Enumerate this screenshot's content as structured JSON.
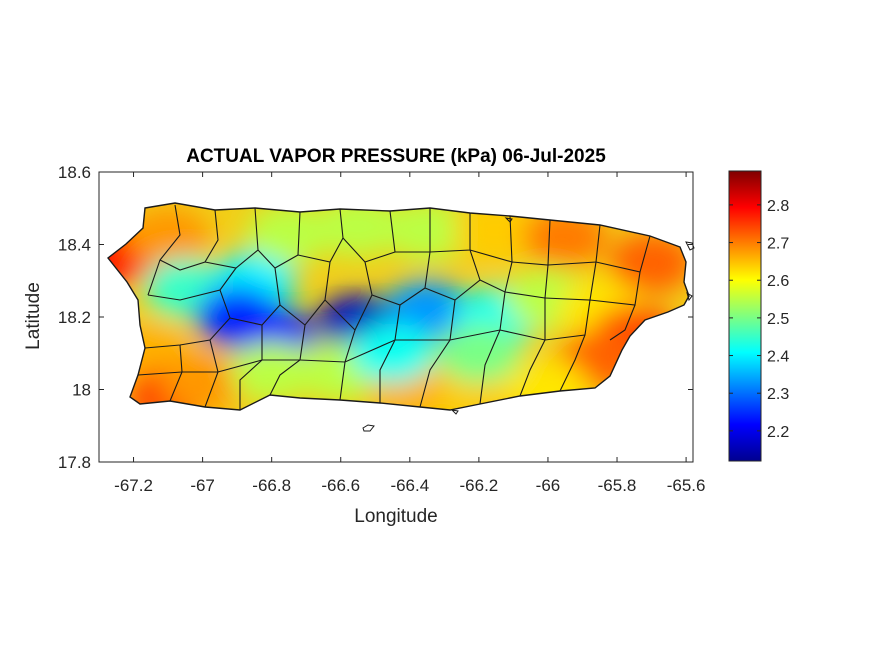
{
  "chart_data": {
    "type": "heatmap",
    "title": "ACTUAL VAPOR PRESSURE (kPa) 06-Jul-2025",
    "xlabel": "Longitude",
    "ylabel": "Latitude",
    "xlim": [
      -67.3,
      -65.58
    ],
    "ylim": [
      17.8,
      18.6
    ],
    "x_ticks": [
      "-67.2",
      "-67",
      "-66.8",
      "-66.6",
      "-66.4",
      "-66.2",
      "-66",
      "-65.8",
      "-65.6"
    ],
    "x_tick_values": [
      -67.2,
      -67.0,
      -66.8,
      -66.6,
      -66.4,
      -66.2,
      -66.0,
      -65.8,
      -65.6
    ],
    "y_ticks": [
      "17.8",
      "18",
      "18.2",
      "18.4",
      "18.6"
    ],
    "y_tick_values": [
      17.8,
      18.0,
      18.2,
      18.4,
      18.6
    ],
    "colorbar": {
      "colormap": "jet",
      "range": [
        2.12,
        2.89
      ],
      "ticks": [
        "2.2",
        "2.3",
        "2.4",
        "2.5",
        "2.6",
        "2.7",
        "2.8"
      ],
      "tick_values": [
        2.2,
        2.3,
        2.4,
        2.5,
        2.6,
        2.7,
        2.8
      ]
    },
    "field_samples": [
      {
        "lon": -67.25,
        "lat": 18.37,
        "value": 2.78
      },
      {
        "lon": -67.1,
        "lat": 18.42,
        "value": 2.68
      },
      {
        "lon": -67.05,
        "lat": 18.28,
        "value": 2.45
      },
      {
        "lon": -66.85,
        "lat": 18.3,
        "value": 2.4
      },
      {
        "lon": -66.75,
        "lat": 18.43,
        "value": 2.55
      },
      {
        "lon": -66.55,
        "lat": 18.45,
        "value": 2.55
      },
      {
        "lon": -66.35,
        "lat": 18.44,
        "value": 2.55
      },
      {
        "lon": -66.15,
        "lat": 18.44,
        "value": 2.64
      },
      {
        "lon": -65.95,
        "lat": 18.42,
        "value": 2.7
      },
      {
        "lon": -65.7,
        "lat": 18.35,
        "value": 2.72
      },
      {
        "lon": -66.9,
        "lat": 18.2,
        "value": 2.25
      },
      {
        "lon": -66.8,
        "lat": 18.15,
        "value": 2.22
      },
      {
        "lon": -66.55,
        "lat": 18.18,
        "value": 2.17
      },
      {
        "lon": -66.35,
        "lat": 18.22,
        "value": 2.33
      },
      {
        "lon": -66.15,
        "lat": 18.2,
        "value": 2.42
      },
      {
        "lon": -66.0,
        "lat": 18.25,
        "value": 2.55
      },
      {
        "lon": -65.85,
        "lat": 18.22,
        "value": 2.62
      },
      {
        "lon": -65.75,
        "lat": 18.15,
        "value": 2.74
      },
      {
        "lon": -65.85,
        "lat": 18.08,
        "value": 2.72
      },
      {
        "lon": -67.15,
        "lat": 18.1,
        "value": 2.66
      },
      {
        "lon": -67.1,
        "lat": 17.98,
        "value": 2.74
      },
      {
        "lon": -67.0,
        "lat": 18.02,
        "value": 2.68
      },
      {
        "lon": -66.8,
        "lat": 18.05,
        "value": 2.55
      },
      {
        "lon": -66.6,
        "lat": 18.05,
        "value": 2.55
      },
      {
        "lon": -66.4,
        "lat": 18.0,
        "value": 2.66
      },
      {
        "lon": -66.2,
        "lat": 18.0,
        "value": 2.64
      },
      {
        "lon": -66.0,
        "lat": 18.0,
        "value": 2.62
      },
      {
        "lon": -66.2,
        "lat": 18.1,
        "value": 2.5
      },
      {
        "lon": -66.45,
        "lat": 18.1,
        "value": 2.42
      }
    ]
  }
}
